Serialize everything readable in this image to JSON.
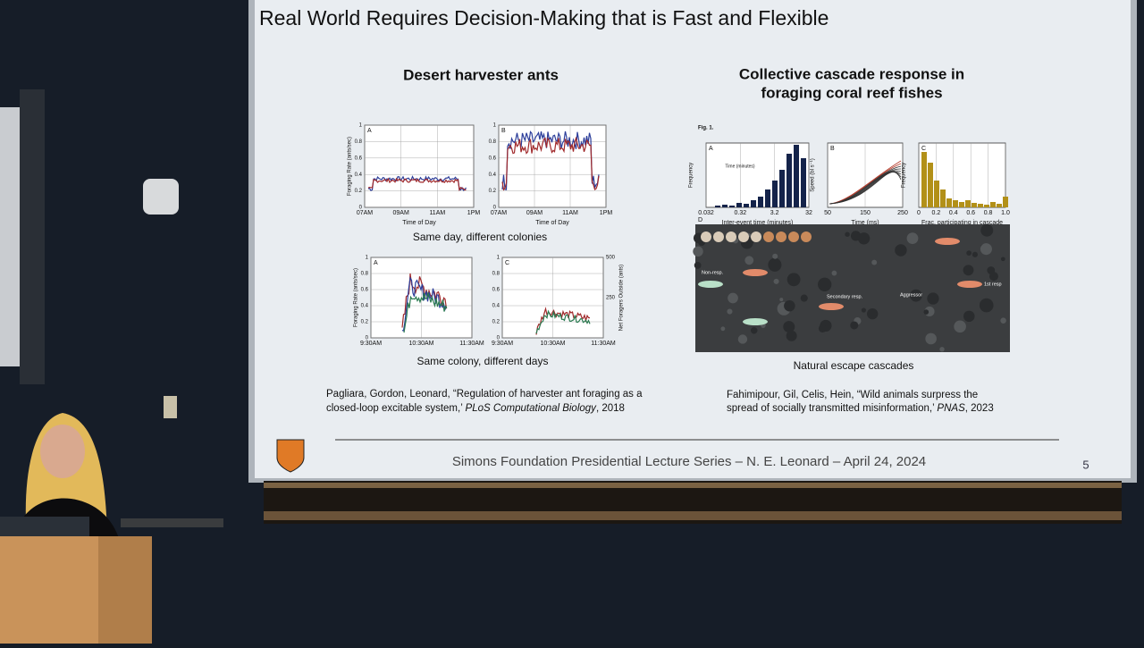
{
  "slide": {
    "title": "Real World Requires Decision-Making that is Fast and Flexible",
    "left": {
      "heading": "Desert harvester ants",
      "top_panels": [
        {
          "label": "A",
          "ylabel": "Foraging Rate (ants/sec)",
          "yticks": [
            "0",
            "0.2",
            "0.4",
            "0.6",
            "0.8",
            "1"
          ],
          "xticks": [
            "07AM",
            "09AM",
            "11AM",
            "1PM"
          ],
          "xlabel": "Time of Day"
        },
        {
          "label": "B",
          "yticks": [
            "0",
            "0.2",
            "0.4",
            "0.6",
            "0.8",
            "1"
          ],
          "xticks": [
            "07AM",
            "09AM",
            "11AM",
            "1PM"
          ],
          "xlabel": "Time of Day"
        }
      ],
      "top_caption": "Same day, different colonies",
      "bottom_panels": [
        {
          "label": "A",
          "ylabel": "Foraging Rate (ants/sec)",
          "yticks": [
            "0",
            "0.2",
            "0.4",
            "0.6",
            "0.8",
            "1"
          ],
          "xticks": [
            "9:30AM",
            "10:30AM",
            "11:30AM"
          ]
        },
        {
          "label": "C",
          "yticks": [
            "0",
            "0.2",
            "0.4",
            "0.6",
            "0.8",
            "1"
          ],
          "xticks": [
            "9:30AM",
            "10:30AM",
            "11:30AM"
          ],
          "y2label": "Net Foragers Outside (ants)",
          "y2ticks": [
            "250",
            "500"
          ]
        }
      ],
      "bottom_caption": "Same colony, different days",
      "citation": [
        "Pagliara, Gordon, Leonard, “Regulation of harvester ant foraging as a",
        "closed-loop excitable system,’ ",
        "PLoS Computational Biology",
        ", 2018"
      ]
    },
    "right": {
      "heading": [
        "Collective cascade response in",
        "foraging coral reef fishes"
      ],
      "fig_label": "Fig. 1.",
      "panel_a": {
        "label": "A",
        "ylabel": "Frequency",
        "xlabel": "Inter-event time (minutes)",
        "xticks": [
          "0.032",
          "0.32",
          "3.2",
          "32"
        ],
        "inset_xlabel": "Time (minutes)"
      },
      "panel_b": {
        "label": "B",
        "ylabel": "Speed (bl s⁻¹)",
        "xlabel": "Time (ms)",
        "xticks": [
          "50",
          "150",
          "250"
        ]
      },
      "panel_c": {
        "label": "C",
        "ylabel": "Frequency",
        "xlabel": "Frac. participating in cascade",
        "xticks": [
          "0",
          "0.2",
          "0.4",
          "0.6",
          "0.8",
          "1.0"
        ]
      },
      "panel_d": {
        "label": "D",
        "tags": [
          "Non-resp.",
          "Secondary resp.",
          "Aggressor",
          "1st resp"
        ]
      },
      "caption": "Natural escape cascades",
      "citation": [
        "Fahimipour, Gil, Celis, Hein, “Wild animals surpress the",
        "spread of socially transmitted misinformation,’ ",
        "PNAS",
        ", 2023"
      ]
    },
    "footer": "Simons Foundation Presidential Lecture Series – N. E. Leonard – April 24, 2024",
    "page_number": "5"
  }
}
